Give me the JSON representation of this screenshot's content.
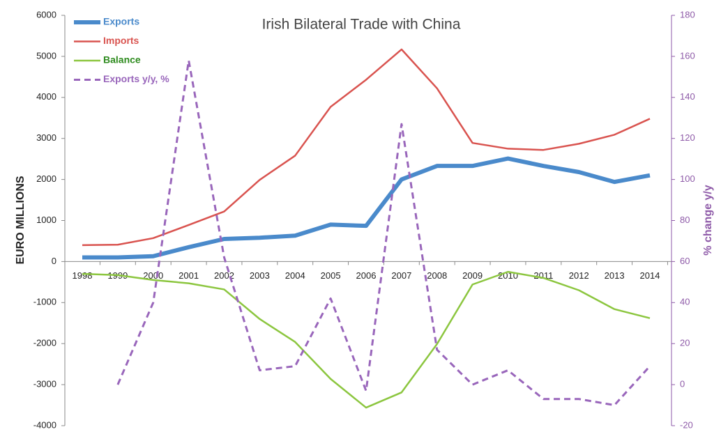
{
  "chart_data": {
    "type": "line",
    "title": "Irish Bilateral Trade with China",
    "ylabel": "EURO MILLIONS",
    "y2label": "% change y/y",
    "categories": [
      "1998",
      "1999",
      "2000",
      "2001",
      "2002",
      "2003",
      "2004",
      "2005",
      "2006",
      "2007",
      "2008",
      "2009",
      "2010",
      "2011",
      "2012",
      "2013",
      "2014"
    ],
    "ylim": [
      -4000,
      6000
    ],
    "yticks": [
      -4000,
      -3000,
      -2000,
      -1000,
      0,
      1000,
      2000,
      3000,
      4000,
      5000,
      6000
    ],
    "y2lim": [
      -20,
      180
    ],
    "y2ticks": [
      -20,
      0,
      20,
      40,
      60,
      80,
      100,
      120,
      140,
      160,
      180
    ],
    "y2color": "#8e5aa8",
    "legend": "top-left",
    "grid": false,
    "series": [
      {
        "name": "Exports",
        "color": "#4a8acb",
        "width": 6,
        "values": [
          100,
          100,
          130,
          350,
          550,
          580,
          630,
          900,
          870,
          2000,
          2330,
          2330,
          2510,
          2330,
          2180,
          1940,
          2100
        ]
      },
      {
        "name": "Imports",
        "color": "#d9534f",
        "width": 2.5,
        "values": [
          400,
          410,
          570,
          890,
          1220,
          1990,
          2580,
          3770,
          4430,
          5170,
          4220,
          2890,
          2750,
          2720,
          2870,
          3090,
          3480
        ]
      },
      {
        "name": "Balance",
        "color": "#8cc63f",
        "width": 2.5,
        "legend_color": "#2e8b1e",
        "values": [
          -300,
          -330,
          -450,
          -530,
          -680,
          -1400,
          -1960,
          -2860,
          -3560,
          -3190,
          -2010,
          -560,
          -250,
          -400,
          -700,
          -1160,
          -1380
        ]
      },
      {
        "name": "Exports y/y, %",
        "color": "#9966bb",
        "width": 3,
        "dashed": true,
        "axis": "y2",
        "values": [
          null,
          0,
          40,
          158,
          62,
          7,
          9,
          42,
          -3,
          127,
          17,
          0,
          7,
          -7,
          -7,
          -10,
          9
        ]
      }
    ]
  }
}
